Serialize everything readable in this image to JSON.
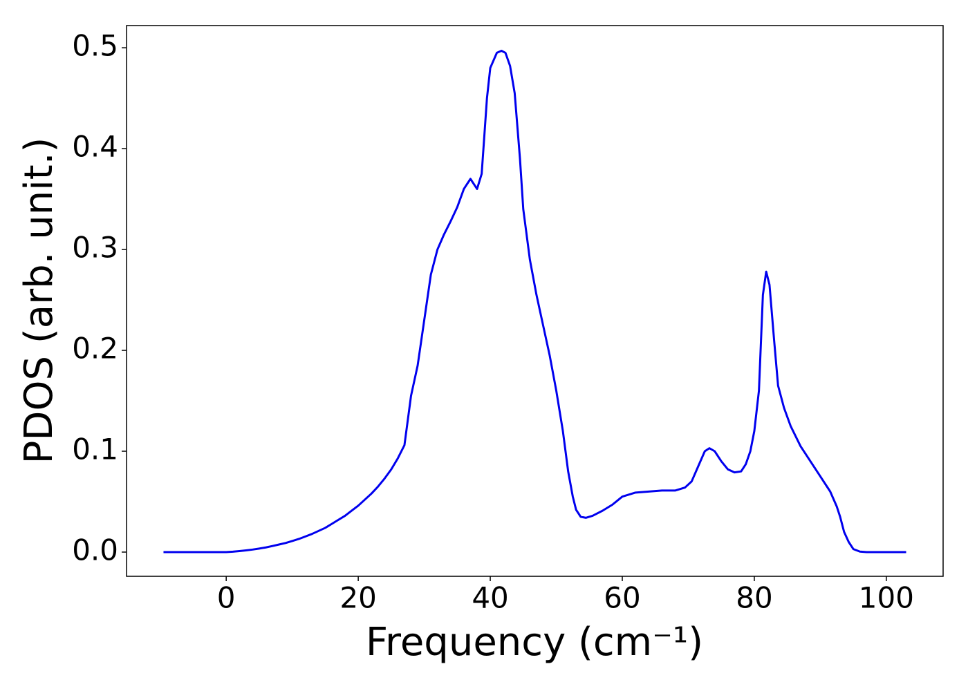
{
  "chart_data": {
    "type": "line",
    "xlabel": "Frequency (cm⁻¹)",
    "ylabel": "PDOS (arb. unit.)",
    "x": [
      -9.5,
      -5,
      0,
      1,
      2,
      3,
      4,
      5,
      6,
      7,
      8,
      9,
      10,
      11,
      12,
      13,
      14,
      15,
      16,
      17,
      18,
      19,
      20,
      21,
      22,
      23,
      24,
      25,
      26,
      27,
      28,
      29,
      30,
      31,
      32,
      33,
      34,
      35,
      36,
      37,
      38,
      38.7,
      39.5,
      40,
      41,
      41.7,
      42.3,
      43,
      43.7,
      44.5,
      45,
      46,
      47,
      48,
      49,
      50,
      51,
      51.8,
      52.5,
      53,
      53.7,
      54.5,
      55.5,
      57,
      58.5,
      60,
      62,
      64,
      66,
      68,
      69.5,
      70.5,
      71.5,
      72.5,
      73.2,
      74,
      75,
      76,
      77,
      78,
      78.7,
      79.4,
      80,
      80.7,
      81.3,
      81.8,
      82.3,
      83,
      83.6,
      84.5,
      85.5,
      87,
      88.5,
      90,
      91.5,
      92.5,
      93,
      93.6,
      94.3,
      95,
      96,
      97,
      103
    ],
    "series": [
      {
        "name": "PDOS",
        "color": "#0000ee",
        "values": [
          0,
          0,
          0,
          0.0004,
          0.001,
          0.0017,
          0.0025,
          0.0035,
          0.0046,
          0.006,
          0.0075,
          0.009,
          0.011,
          0.013,
          0.0155,
          0.018,
          0.021,
          0.024,
          0.028,
          0.032,
          0.036,
          0.041,
          0.046,
          0.052,
          0.058,
          0.065,
          0.073,
          0.082,
          0.093,
          0.106,
          0.155,
          0.185,
          0.23,
          0.275,
          0.3,
          0.315,
          0.328,
          0.342,
          0.36,
          0.37,
          0.36,
          0.375,
          0.45,
          0.48,
          0.495,
          0.497,
          0.495,
          0.482,
          0.455,
          0.39,
          0.34,
          0.29,
          0.255,
          0.225,
          0.195,
          0.16,
          0.12,
          0.08,
          0.055,
          0.042,
          0.035,
          0.034,
          0.036,
          0.041,
          0.047,
          0.055,
          0.059,
          0.06,
          0.061,
          0.061,
          0.064,
          0.07,
          0.085,
          0.1,
          0.103,
          0.1,
          0.09,
          0.082,
          0.079,
          0.08,
          0.087,
          0.1,
          0.12,
          0.16,
          0.255,
          0.278,
          0.265,
          0.21,
          0.165,
          0.143,
          0.125,
          0.105,
          0.09,
          0.075,
          0.06,
          0.045,
          0.035,
          0.02,
          0.01,
          0.003,
          0.0005,
          0,
          0
        ]
      }
    ],
    "xlim": [
      -15.1,
      108.6
    ],
    "xticks": [
      0,
      20,
      40,
      60,
      80,
      100
    ],
    "ylim": [
      -0.024,
      0.522
    ],
    "yticks": [
      {
        "value": 0,
        "label": "0.0"
      },
      0.1,
      0.2,
      0.3,
      0.4,
      0.5
    ]
  }
}
